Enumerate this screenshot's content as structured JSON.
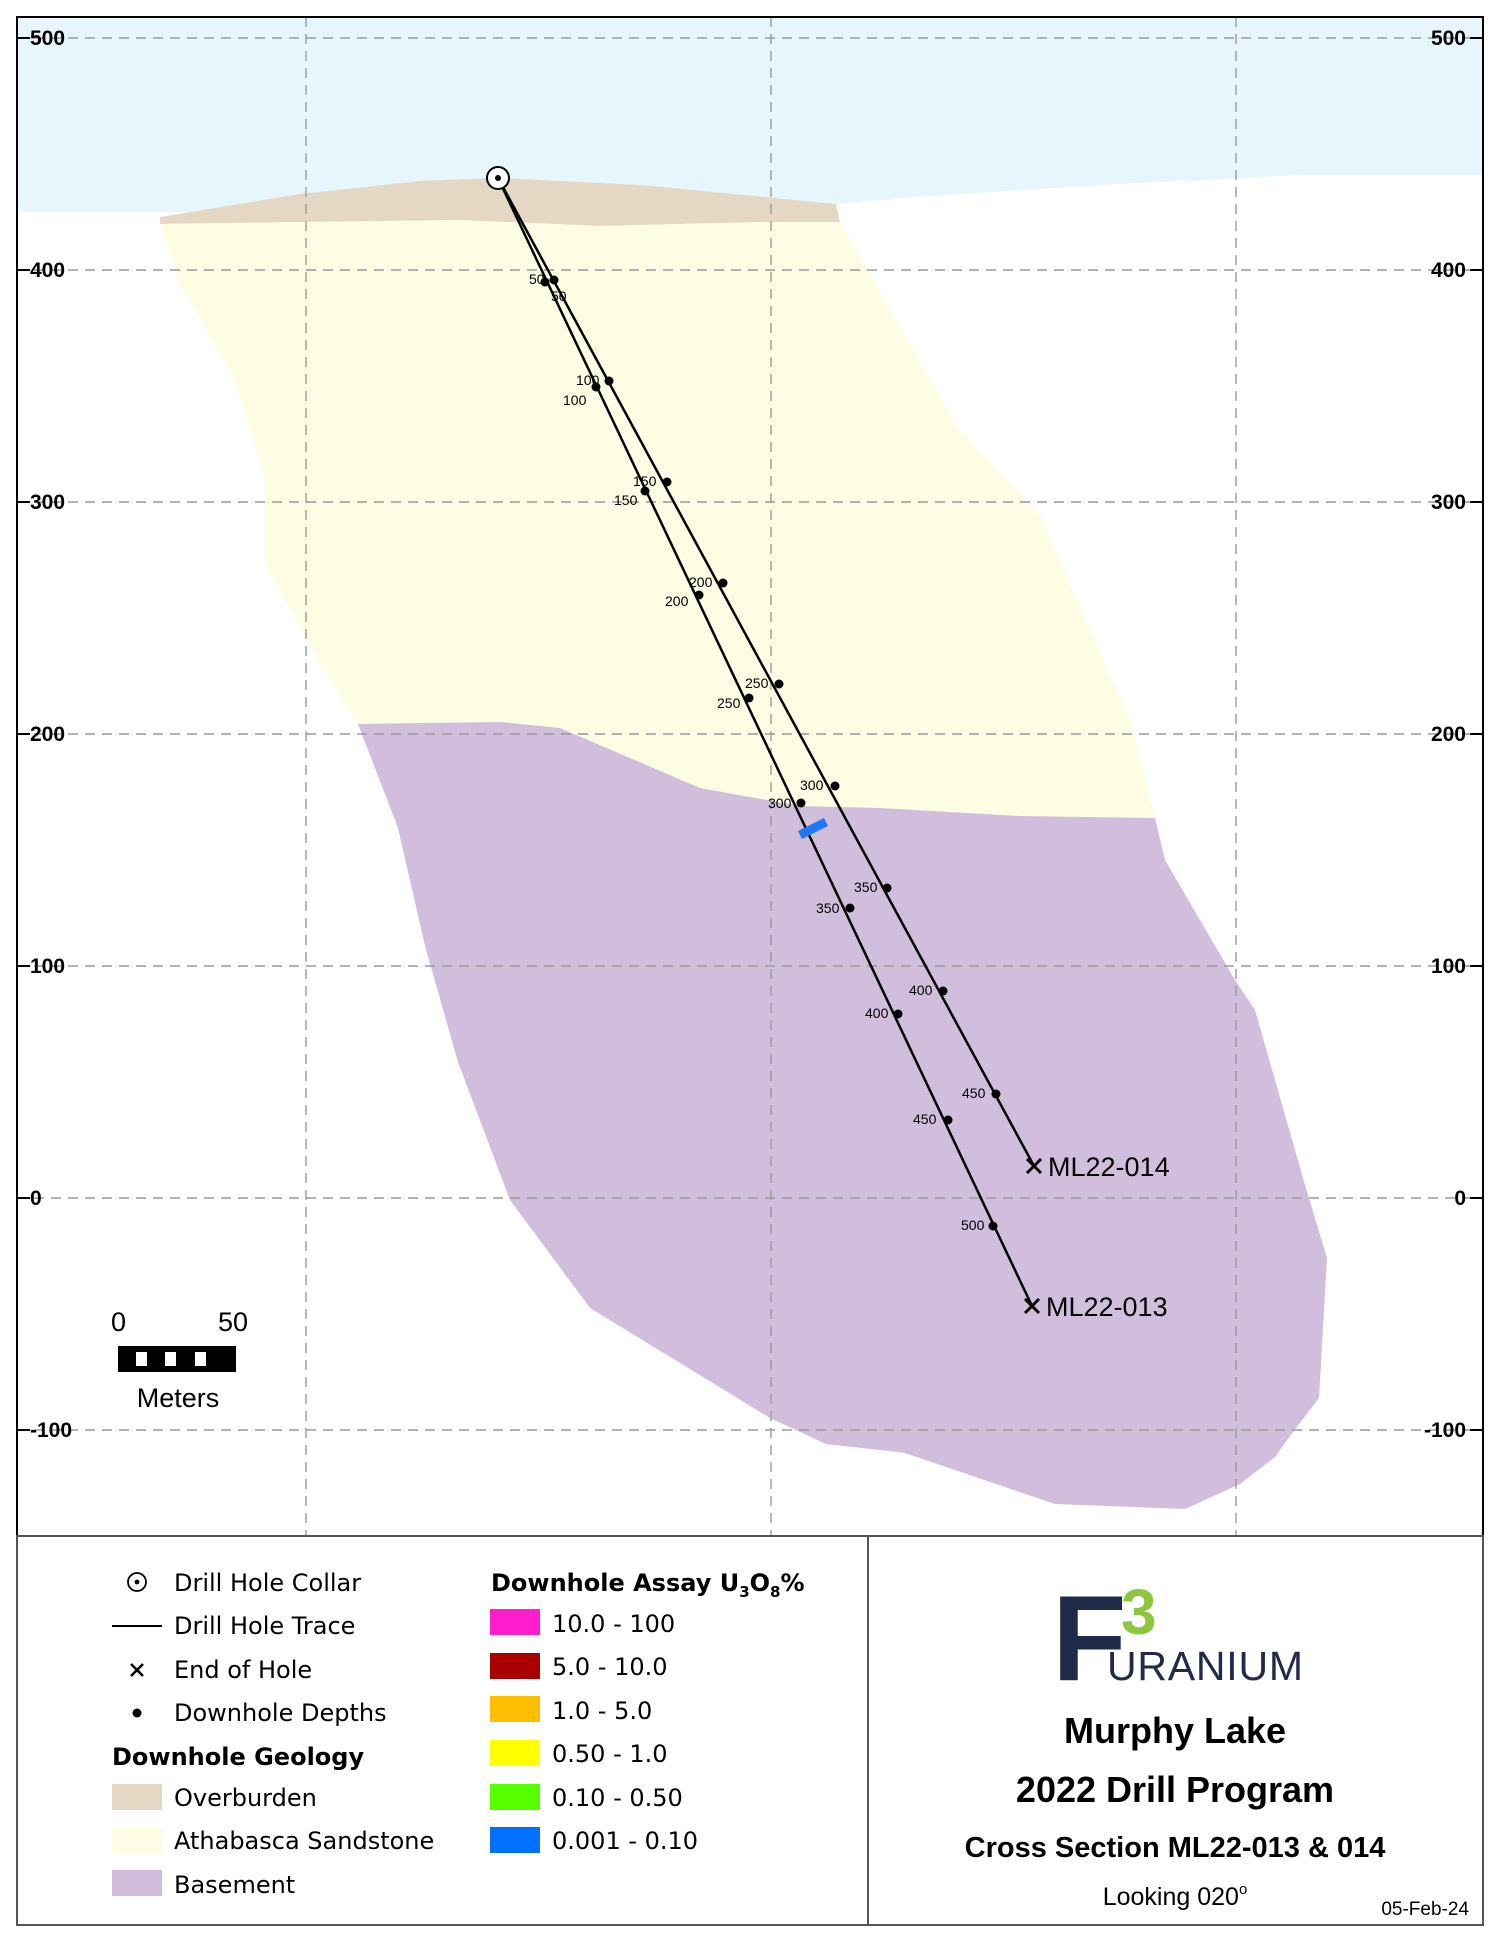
{
  "axis": {
    "y_ticks": [
      "500",
      "400",
      "300",
      "200",
      "100",
      "0",
      "-100"
    ],
    "y_values": [
      500,
      400,
      300,
      200,
      100,
      0,
      -100
    ]
  },
  "colors": {
    "sky": "#e6f6fc",
    "overburden": "#e4d8c5",
    "sandstone": "#fdfde3",
    "basement": "#d1bedd",
    "assay_blue": "#1f78f0"
  },
  "holes": [
    {
      "id": "ML22-014",
      "label": "ML22-014",
      "depths": [
        "50",
        "100",
        "150",
        "200",
        "250",
        "300",
        "350",
        "400",
        "450"
      ]
    },
    {
      "id": "ML22-013",
      "label": "ML22-013",
      "depths": [
        "50",
        "100",
        "150",
        "200",
        "250",
        "300",
        "350",
        "400",
        "450",
        "500"
      ]
    }
  ],
  "scale_bar": {
    "start": "0",
    "end": "50",
    "unit": "Meters"
  },
  "legend": {
    "symbols": [
      {
        "icon": "drill-collar-icon",
        "label": "Drill Hole Collar"
      },
      {
        "icon": "drill-trace-icon",
        "label": "Drill Hole Trace"
      },
      {
        "icon": "end-of-hole-icon",
        "label": "End of Hole"
      },
      {
        "icon": "downhole-depth-icon",
        "label": "Downhole Depths"
      }
    ],
    "geology_heading": "Downhole Geology",
    "geology": [
      {
        "label": "Overburden",
        "color": "#e4d8c5"
      },
      {
        "label": "Athabasca Sandstone",
        "color": "#fdfde3"
      },
      {
        "label": "Basement",
        "color": "#d1bedd"
      }
    ],
    "assay_heading_main": "Downhole Assay U",
    "assay_heading_sub1": "3",
    "assay_heading_mid": "O",
    "assay_heading_sub2": "8",
    "assay_heading_tail": "%",
    "assay": [
      {
        "label": "10.0 - 100",
        "color": "#ff1dce"
      },
      {
        "label": "5.0 - 10.0",
        "color": "#a80000"
      },
      {
        "label": "1.0 - 5.0",
        "color": "#ffbf00"
      },
      {
        "label": "0.50 - 1.0",
        "color": "#ffff00"
      },
      {
        "label": "0.10 - 0.50",
        "color": "#55ff00"
      },
      {
        "label": "0.001 - 0.10",
        "color": "#0070ff"
      }
    ]
  },
  "title_block": {
    "logo_letter": "F",
    "logo_number": "3",
    "logo_word": "URANIUM",
    "title1": "Murphy Lake",
    "title2": "2022 Drill Program",
    "title3": "Cross Section ML22-013 & 014",
    "looking_prefix": "Looking 020",
    "looking_degree": "o",
    "date": "05-Feb-24"
  }
}
